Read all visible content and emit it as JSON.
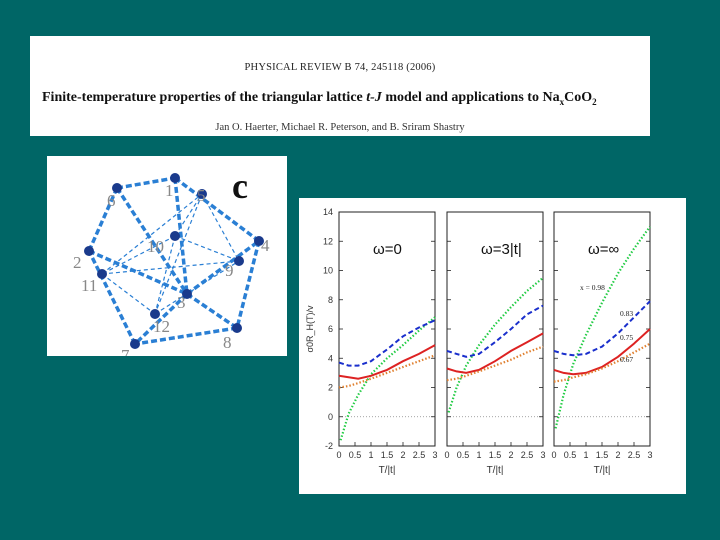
{
  "header": {
    "journal": "PHYSICAL REVIEW B 74, 245118 (2006)",
    "title": "Finite-temperature properties of the triangular lattice t-J model and applications to NaxCoO2",
    "authors": "Jan O. Haerter, Michael R. Peterson, and B. Sriram Shastry"
  },
  "lattice": {
    "panel_label": "c",
    "site_labels": [
      "1",
      "2",
      "3",
      "4",
      "5",
      "6",
      "7",
      "8",
      "9",
      "10",
      "11",
      "12"
    ],
    "colors": {
      "bond": "#2a7fd4",
      "node": "#1a3a8c",
      "label": "#888888"
    }
  },
  "chart_data": [
    {
      "type": "line",
      "panel_title": "ω=0",
      "xlabel": "T/|t|",
      "ylabel": "σ0R_H(T)/v",
      "xlim": [
        0,
        3
      ],
      "ylim": [
        -2,
        14
      ],
      "x_ticks": [
        "0",
        "0.5",
        "1",
        "1.5",
        "2",
        "2.5",
        "3"
      ],
      "y_ticks": [
        "-2",
        "0",
        "2",
        "4",
        "6",
        "8",
        "10",
        "12",
        "14"
      ],
      "series": [
        {
          "color": "#22cc44",
          "dash": "dot",
          "x": [
            0.05,
            0.3,
            0.6,
            1,
            1.5,
            2,
            2.5,
            3
          ],
          "values": [
            -1.6,
            0.2,
            1.5,
            2.9,
            4.0,
            4.9,
            5.9,
            6.8
          ]
        },
        {
          "color": "#1a2fcc",
          "dash": "dash",
          "x": [
            0,
            0.3,
            0.6,
            1,
            1.5,
            2,
            2.5,
            3
          ],
          "values": [
            3.7,
            3.5,
            3.5,
            3.8,
            4.6,
            5.5,
            6.1,
            6.6
          ]
        },
        {
          "color": "#dd2222",
          "dash": "solid",
          "x": [
            0,
            0.3,
            0.6,
            1,
            1.5,
            2,
            2.5,
            3
          ],
          "values": [
            2.8,
            2.7,
            2.6,
            2.8,
            3.2,
            3.8,
            4.3,
            4.9
          ]
        },
        {
          "color": "#e08030",
          "dash": "dot",
          "x": [
            0,
            0.3,
            0.6,
            1,
            1.5,
            2,
            2.5,
            3
          ],
          "values": [
            2.0,
            2.1,
            2.3,
            2.6,
            3.0,
            3.4,
            3.8,
            4.2
          ]
        }
      ]
    },
    {
      "type": "line",
      "panel_title": "ω=3|t|",
      "xlabel": "T/|t|",
      "xlim": [
        0,
        3
      ],
      "ylim": [
        -2,
        14
      ],
      "x_ticks": [
        "0",
        "0.5",
        "1",
        "1.5",
        "2",
        "2.5",
        "3"
      ],
      "series": [
        {
          "color": "#22cc44",
          "dash": "dot",
          "x": [
            0.05,
            0.3,
            0.6,
            1,
            1.5,
            2,
            2.5,
            3
          ],
          "values": [
            0.3,
            2.0,
            3.5,
            4.9,
            6.3,
            7.5,
            8.6,
            9.5
          ]
        },
        {
          "color": "#1a2fcc",
          "dash": "dash",
          "x": [
            0,
            0.3,
            0.6,
            1,
            1.5,
            2,
            2.5,
            3
          ],
          "values": [
            4.5,
            4.3,
            4.1,
            4.3,
            5.1,
            6.0,
            7.0,
            7.6
          ]
        },
        {
          "color": "#dd2222",
          "dash": "solid",
          "x": [
            0,
            0.3,
            0.6,
            1,
            1.5,
            2,
            2.5,
            3
          ],
          "values": [
            3.3,
            3.1,
            3.0,
            3.2,
            3.8,
            4.5,
            5.1,
            5.7
          ]
        },
        {
          "color": "#e08030",
          "dash": "dot",
          "x": [
            0,
            0.3,
            0.6,
            1,
            1.5,
            2,
            2.5,
            3
          ],
          "values": [
            2.5,
            2.6,
            2.8,
            3.1,
            3.5,
            3.9,
            4.4,
            4.8
          ]
        }
      ]
    },
    {
      "type": "line",
      "panel_title": "ω=∞",
      "xlabel": "T/|t|",
      "xlim": [
        0,
        3
      ],
      "ylim": [
        -2,
        14
      ],
      "x_ticks": [
        "0",
        "0.5",
        "1",
        "1.5",
        "2",
        "2.5",
        "3"
      ],
      "series": [
        {
          "name": "x = 0.98",
          "color": "#22cc44",
          "dash": "dot",
          "x": [
            0.05,
            0.3,
            0.6,
            1,
            1.5,
            2,
            2.5,
            3
          ],
          "values": [
            -0.8,
            1.5,
            3.6,
            5.6,
            7.8,
            9.8,
            11.5,
            13.0
          ]
        },
        {
          "name": "0.83",
          "color": "#1a2fcc",
          "dash": "dash",
          "x": [
            0,
            0.3,
            0.6,
            1,
            1.5,
            2,
            2.5,
            3
          ],
          "values": [
            4.5,
            4.3,
            4.2,
            4.3,
            4.8,
            5.7,
            6.8,
            7.9
          ]
        },
        {
          "name": "0.75",
          "color": "#dd2222",
          "dash": "solid",
          "x": [
            0,
            0.3,
            0.6,
            1,
            1.5,
            2,
            2.5,
            3
          ],
          "values": [
            3.2,
            3.0,
            2.9,
            3.0,
            3.4,
            4.1,
            5.0,
            6.0
          ]
        },
        {
          "name": "0.67",
          "color": "#e08030",
          "dash": "dot",
          "x": [
            0,
            0.3,
            0.6,
            1,
            1.5,
            2,
            2.5,
            3
          ],
          "values": [
            2.4,
            2.5,
            2.7,
            2.9,
            3.3,
            3.8,
            4.4,
            5.0
          ]
        }
      ]
    }
  ]
}
